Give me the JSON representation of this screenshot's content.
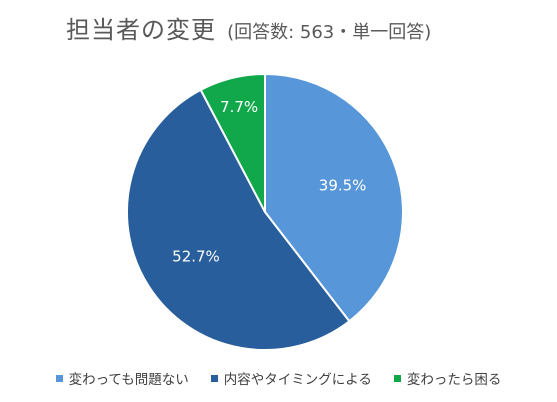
{
  "chart_data": {
    "type": "pie",
    "title": "担当者の変更",
    "subtitle": "(回答数: 563・単一回答)",
    "categories": [
      "変わっても問題ない",
      "内容やタイミングによる",
      "変わったら困る"
    ],
    "values": [
      39.5,
      52.7,
      7.7
    ],
    "labels": [
      "39.5%",
      "52.7%",
      "7.7%"
    ],
    "colors": [
      "#5796D8",
      "#275E9B",
      "#10A84A"
    ],
    "legend_position": "bottom"
  }
}
